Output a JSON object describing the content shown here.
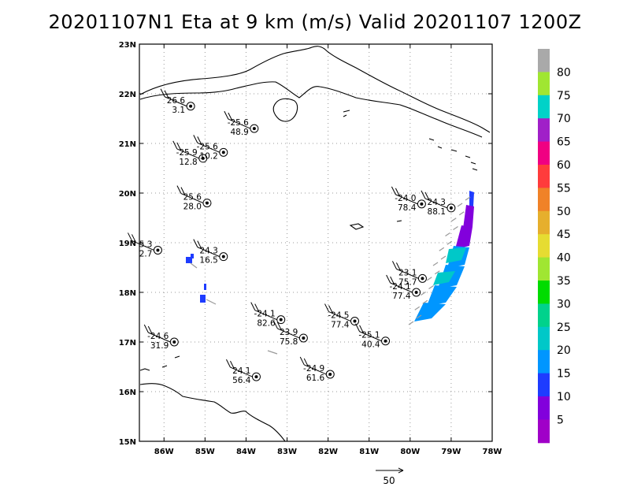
{
  "title": "20201107N1 Eta at 9 km (m/s) Valid 20201107 1200Z",
  "map": {
    "lon_range": [
      -86.6,
      -78.0
    ],
    "lat_range": [
      15.0,
      23.0
    ],
    "lon_ticks": [
      {
        "value": -86,
        "label": "86W"
      },
      {
        "value": -85,
        "label": "85W"
      },
      {
        "value": -84,
        "label": "84W"
      },
      {
        "value": -83,
        "label": "83W"
      },
      {
        "value": -82,
        "label": "82W"
      },
      {
        "value": -81,
        "label": "81W"
      },
      {
        "value": -80,
        "label": "80W"
      },
      {
        "value": -79,
        "label": "79W"
      },
      {
        "value": -78,
        "label": "78W"
      }
    ],
    "lat_ticks": [
      {
        "value": 15,
        "label": "15N"
      },
      {
        "value": 16,
        "label": "16N"
      },
      {
        "value": 17,
        "label": "17N"
      },
      {
        "value": 18,
        "label": "18N"
      },
      {
        "value": 19,
        "label": "19N"
      },
      {
        "value": 20,
        "label": "20N"
      },
      {
        "value": 21,
        "label": "21N"
      },
      {
        "value": 22,
        "label": "22N"
      },
      {
        "value": 23,
        "label": "23N"
      }
    ],
    "grid": true
  },
  "observations": [
    {
      "lon": -85.35,
      "lat": 21.75,
      "temp": "26.6",
      "value": "3.1"
    },
    {
      "lon": -83.8,
      "lat": 21.3,
      "temp": "-25.6",
      "value": "48.9"
    },
    {
      "lon": -84.55,
      "lat": 20.82,
      "temp": "-25.6",
      "value": "10.2"
    },
    {
      "lon": -85.05,
      "lat": 20.7,
      "temp": "-25.9",
      "value": "12.8"
    },
    {
      "lon": -84.95,
      "lat": 19.8,
      "temp": "25.6",
      "value": "28.0"
    },
    {
      "lon": -86.15,
      "lat": 18.85,
      "temp": "5.3",
      "value": "2.7"
    },
    {
      "lon": -84.55,
      "lat": 18.72,
      "temp": "24.3",
      "value": "16.5"
    },
    {
      "lon": -83.15,
      "lat": 17.45,
      "temp": "-24.1",
      "value": "82.6"
    },
    {
      "lon": -82.6,
      "lat": 17.08,
      "temp": "23.9",
      "value": "75.8"
    },
    {
      "lon": -85.75,
      "lat": 17.0,
      "temp": "-24.6",
      "value": "31.9"
    },
    {
      "lon": -81.35,
      "lat": 17.42,
      "temp": "-24.5",
      "value": "77.4"
    },
    {
      "lon": -80.6,
      "lat": 17.02,
      "temp": "-25.1",
      "value": "40.4"
    },
    {
      "lon": -81.95,
      "lat": 16.35,
      "temp": "-24.9",
      "value": "61.6"
    },
    {
      "lon": -83.75,
      "lat": 16.3,
      "temp": "24.1",
      "value": "56.4"
    },
    {
      "lon": -79.7,
      "lat": 18.28,
      "temp": "23.1",
      "value": "75.7"
    },
    {
      "lon": -79.85,
      "lat": 18.0,
      "temp": "-24.1",
      "value": "77.4"
    },
    {
      "lon": -79.72,
      "lat": 19.78,
      "temp": "-24.0",
      "value": "78.4"
    },
    {
      "lon": -79.0,
      "lat": 19.7,
      "temp": "24.3",
      "value": "88.1"
    }
  ],
  "colorbar": {
    "levels": [
      {
        "label": "80",
        "color": "#a9a9a9"
      },
      {
        "label": "75",
        "color": "#a0e632"
      },
      {
        "label": "70",
        "color": "#00d2c8"
      },
      {
        "label": "65",
        "color": "#a020c8"
      },
      {
        "label": "60",
        "color": "#f00082"
      },
      {
        "label": "55",
        "color": "#ff3c3c"
      },
      {
        "label": "50",
        "color": "#f08228"
      },
      {
        "label": "45",
        "color": "#e6af2d"
      },
      {
        "label": "40",
        "color": "#e6dc32"
      },
      {
        "label": "35",
        "color": "#a0e632"
      },
      {
        "label": "30",
        "color": "#00dc00"
      },
      {
        "label": "25",
        "color": "#00d28c"
      },
      {
        "label": "20",
        "color": "#00c8c8"
      },
      {
        "label": "15",
        "color": "#0096ff"
      },
      {
        "label": "10",
        "color": "#1e3cff"
      },
      {
        "label": "5",
        "color": "#8200dc"
      },
      {
        "label": "",
        "color": "#a000c8"
      }
    ]
  },
  "reference_vector": {
    "label": "50"
  }
}
